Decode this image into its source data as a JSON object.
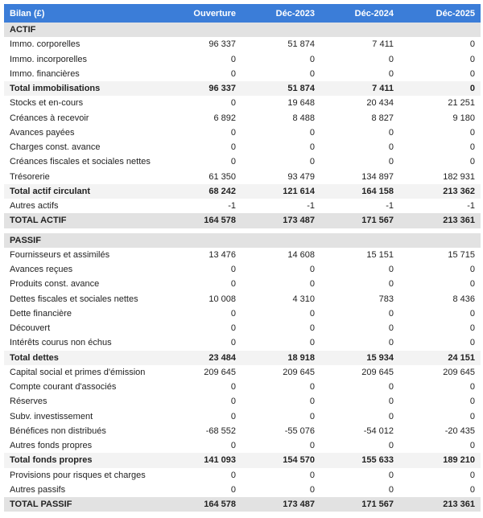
{
  "header": [
    "Bilan (£)",
    "Ouverture",
    "Déc-2023",
    "Déc-2024",
    "Déc-2025"
  ],
  "sections": [
    {
      "title": "ACTIF",
      "rows": [
        {
          "label": "Immo. corporelles",
          "values": [
            "96 337",
            "51 874",
            "7 411",
            "0"
          ]
        },
        {
          "label": "Immo. incorporelles",
          "values": [
            "0",
            "0",
            "0",
            "0"
          ]
        },
        {
          "label": "Immo. financières",
          "values": [
            "0",
            "0",
            "0",
            "0"
          ]
        },
        {
          "label": "Total immobilisations",
          "values": [
            "96 337",
            "51 874",
            "7 411",
            "0"
          ],
          "total": true
        },
        {
          "label": "Stocks et en-cours",
          "values": [
            "0",
            "19 648",
            "20 434",
            "21 251"
          ]
        },
        {
          "label": "Créances à recevoir",
          "values": [
            "6 892",
            "8 488",
            "8 827",
            "9 180"
          ]
        },
        {
          "label": "Avances payées",
          "values": [
            "0",
            "0",
            "0",
            "0"
          ]
        },
        {
          "label": "Charges const. avance",
          "values": [
            "0",
            "0",
            "0",
            "0"
          ]
        },
        {
          "label": "Créances fiscales et sociales nettes",
          "values": [
            "0",
            "0",
            "0",
            "0"
          ]
        },
        {
          "label": "Trésorerie",
          "values": [
            "61 350",
            "93 479",
            "134 897",
            "182 931"
          ]
        },
        {
          "label": "Total actif circulant",
          "values": [
            "68 242",
            "121 614",
            "164 158",
            "213 362"
          ],
          "total": true
        },
        {
          "label": "Autres actifs",
          "values": [
            "-1",
            "-1",
            "-1",
            "-1"
          ]
        },
        {
          "label": "TOTAL ACTIF",
          "values": [
            "164 578",
            "173 487",
            "171 567",
            "213 361"
          ],
          "grand_total": true
        }
      ]
    },
    {
      "title": "PASSIF",
      "rows": [
        {
          "label": "Fournisseurs et assimilés",
          "values": [
            "13 476",
            "14 608",
            "15 151",
            "15 715"
          ]
        },
        {
          "label": "Avances reçues",
          "values": [
            "0",
            "0",
            "0",
            "0"
          ]
        },
        {
          "label": "Produits const. avance",
          "values": [
            "0",
            "0",
            "0",
            "0"
          ]
        },
        {
          "label": "Dettes fiscales et sociales nettes",
          "values": [
            "10 008",
            "4 310",
            "783",
            "8 436"
          ]
        },
        {
          "label": "Dette financière",
          "values": [
            "0",
            "0",
            "0",
            "0"
          ]
        },
        {
          "label": "Découvert",
          "values": [
            "0",
            "0",
            "0",
            "0"
          ]
        },
        {
          "label": "Intérêts courus non échus",
          "values": [
            "0",
            "0",
            "0",
            "0"
          ]
        },
        {
          "label": "Total dettes",
          "values": [
            "23 484",
            "18 918",
            "15 934",
            "24 151"
          ],
          "total": true
        },
        {
          "label": "Capital social et primes d'émission",
          "values": [
            "209 645",
            "209 645",
            "209 645",
            "209 645"
          ]
        },
        {
          "label": "Compte courant d'associés",
          "values": [
            "0",
            "0",
            "0",
            "0"
          ]
        },
        {
          "label": "Réserves",
          "values": [
            "0",
            "0",
            "0",
            "0"
          ]
        },
        {
          "label": "Subv. investissement",
          "values": [
            "0",
            "0",
            "0",
            "0"
          ]
        },
        {
          "label": "Bénéfices non distribués",
          "values": [
            "-68 552",
            "-55 076",
            "-54 012",
            "-20 435"
          ]
        },
        {
          "label": "Autres fonds propres",
          "values": [
            "0",
            "0",
            "0",
            "0"
          ]
        },
        {
          "label": "Total fonds propres",
          "values": [
            "141 093",
            "154 570",
            "155 633",
            "189 210"
          ],
          "total": true
        },
        {
          "label": "Provisions pour risques et charges",
          "values": [
            "0",
            "0",
            "0",
            "0"
          ]
        },
        {
          "label": "Autres passifs",
          "values": [
            "0",
            "0",
            "0",
            "0"
          ]
        },
        {
          "label": "TOTAL PASSIF",
          "values": [
            "164 578",
            "173 487",
            "171 567",
            "213 361"
          ],
          "grand_total": true
        }
      ]
    }
  ]
}
